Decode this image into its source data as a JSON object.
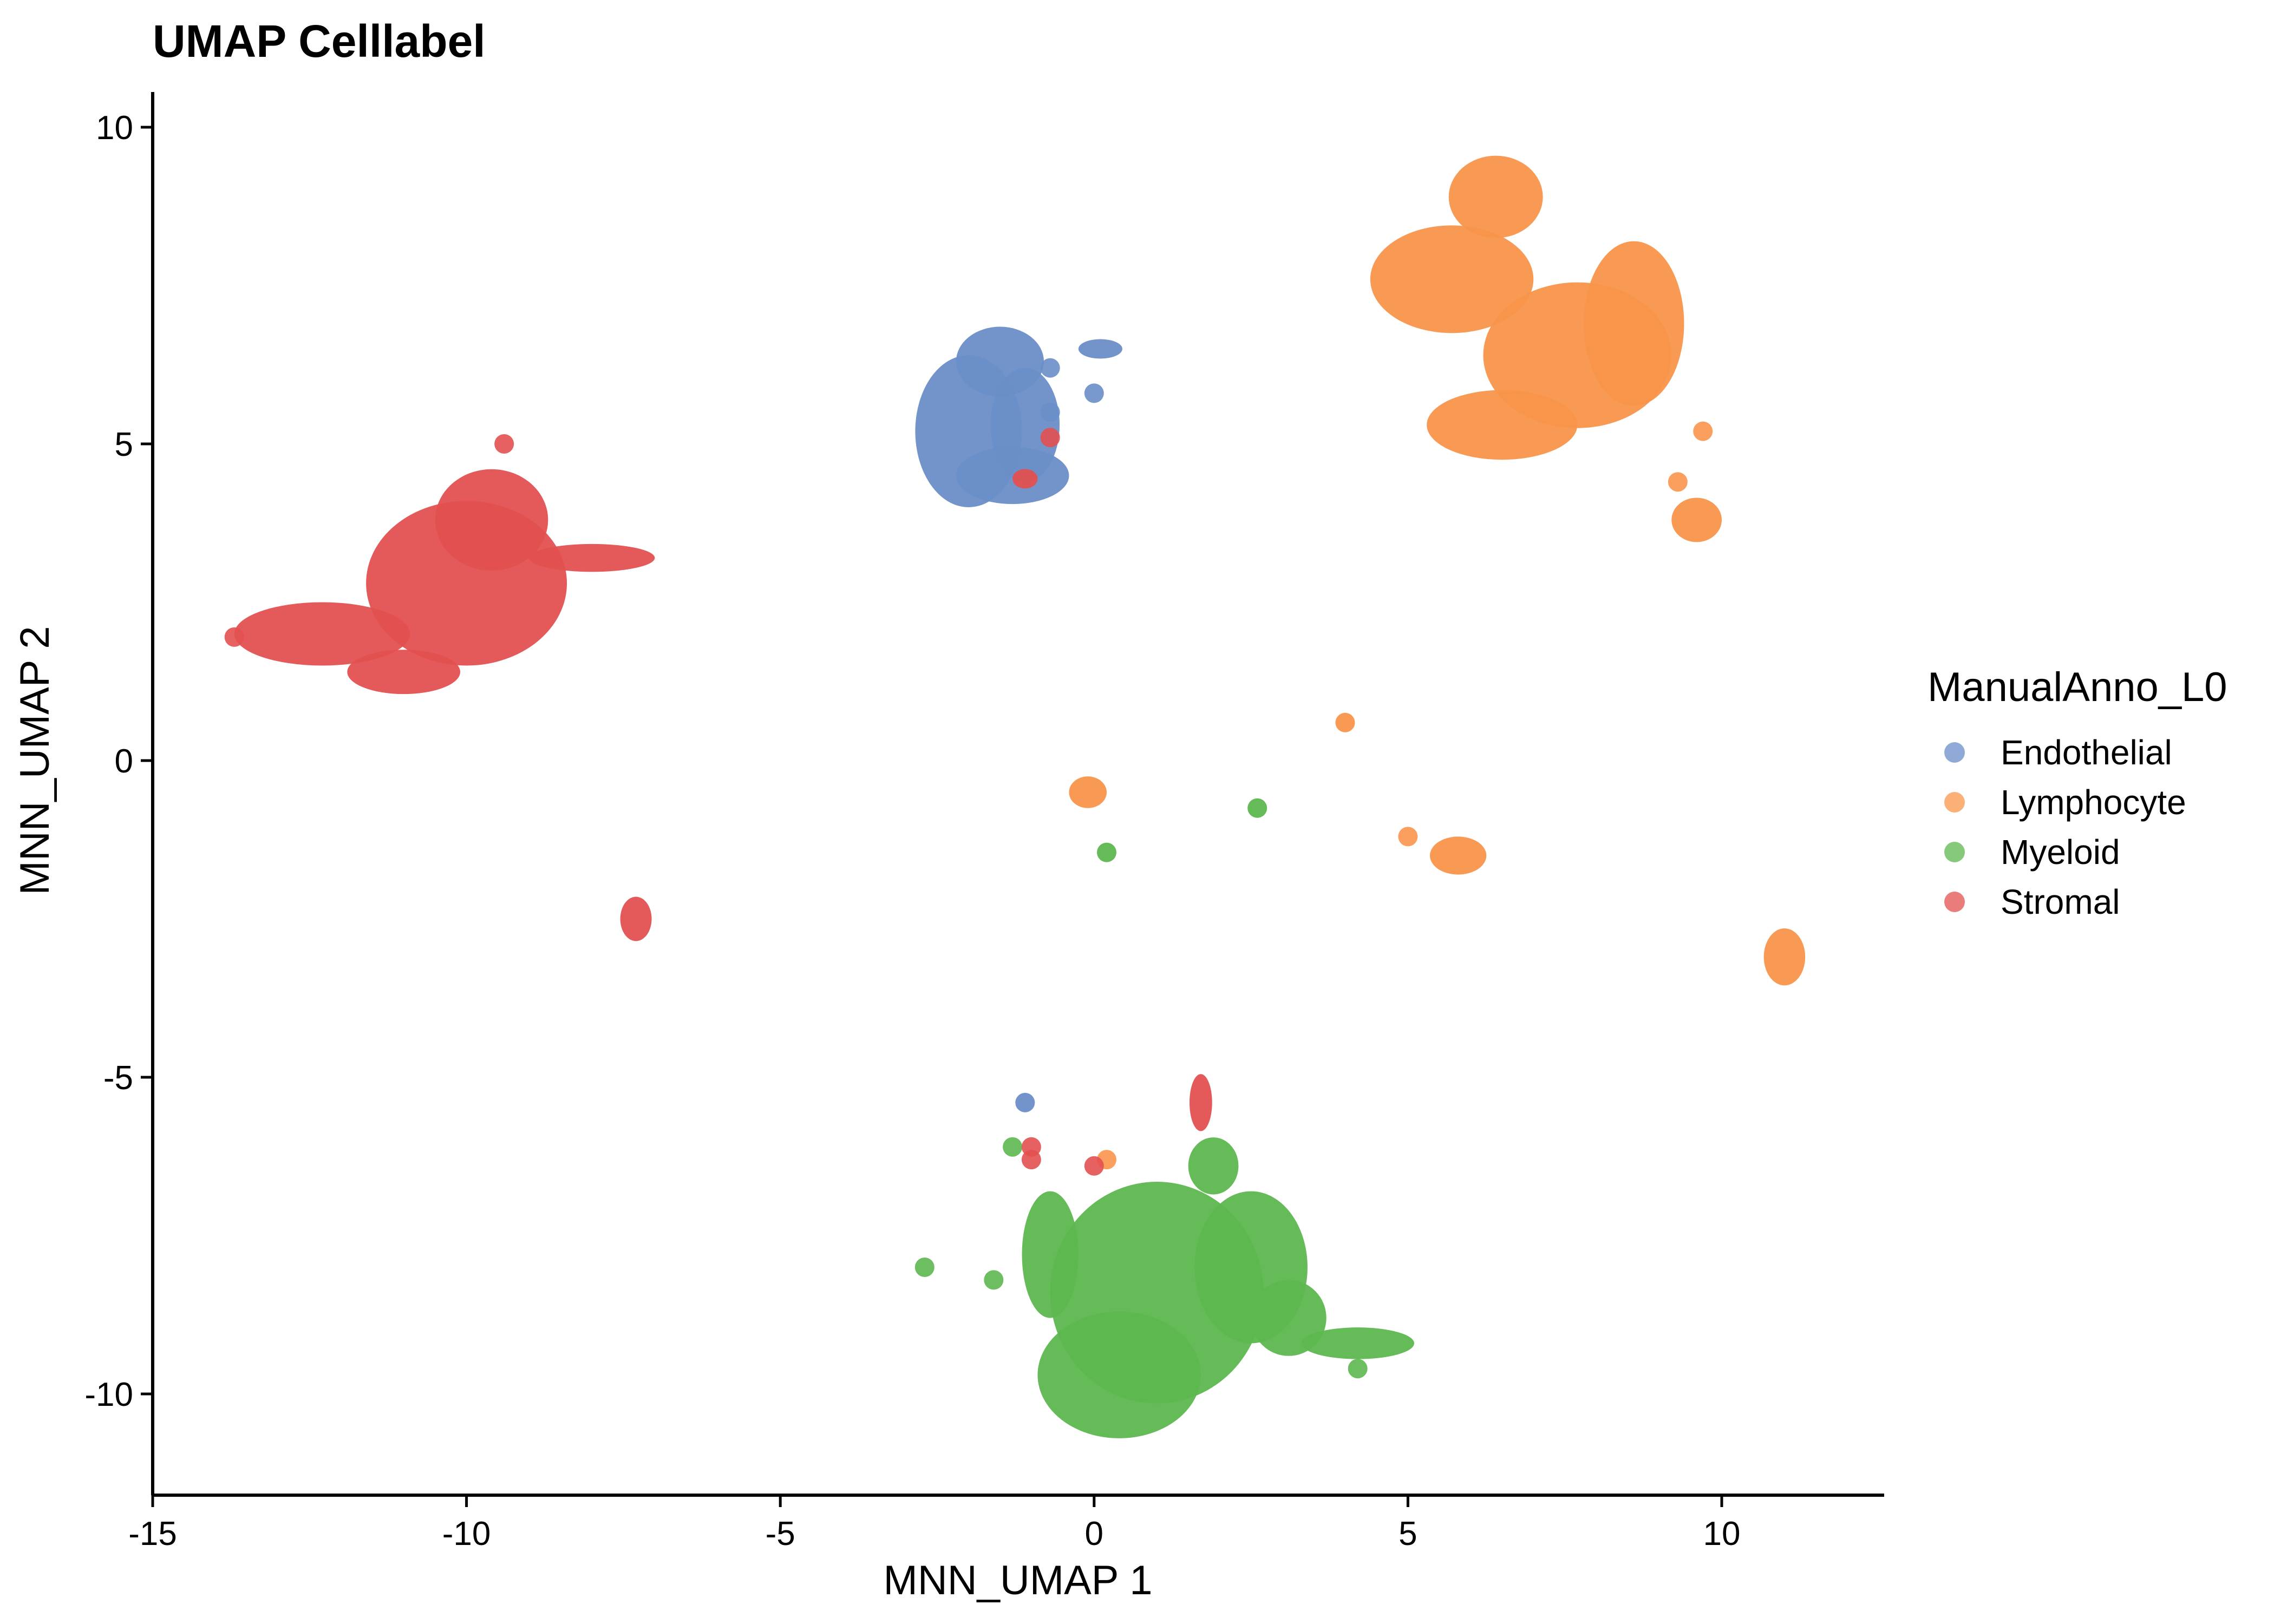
{
  "chart_data": {
    "type": "scatter",
    "title": "UMAP Celllabel",
    "xlabel": "MNN_UMAP 1",
    "ylabel": "MNN_UMAP 2",
    "xlim": [
      -15,
      12.5
    ],
    "ylim": [
      -11.7,
      10.5
    ],
    "xticks": [
      -15,
      -10,
      -5,
      0,
      5,
      10
    ],
    "xtick_labels": [
      "-15",
      "-10",
      "-5",
      "0",
      "5",
      "10"
    ],
    "yticks": [
      -10,
      -5,
      0,
      5,
      10
    ],
    "ytick_labels": [
      "-10",
      "-5",
      "0",
      "5",
      "10"
    ],
    "grid": false,
    "legend": {
      "title": "ManualAnno_L0",
      "placement": "right",
      "entries": [
        {
          "name": "Endothelial",
          "color": "#6a8ec8"
        },
        {
          "name": "Lymphocyte",
          "color": "#f9954b"
        },
        {
          "name": "Myeloid",
          "color": "#5db74f"
        },
        {
          "name": "Stromal",
          "color": "#e35050"
        }
      ]
    },
    "series": [
      {
        "name": "Endothelial",
        "color": "#6a8ec8",
        "clusters": [
          {
            "x": -2.0,
            "y": 5.2
          },
          {
            "x": -1.5,
            "y": 6.3
          },
          {
            "x": -1.3,
            "y": 4.5
          },
          {
            "x": -1.1,
            "y": 5.3
          },
          {
            "x": 0.1,
            "y": 6.5
          },
          {
            "x": -1.1,
            "y": -5.4
          }
        ],
        "points": [
          {
            "x": 0.0,
            "y": 5.8
          },
          {
            "x": -0.7,
            "y": 5.5
          },
          {
            "x": -0.7,
            "y": 6.2
          }
        ]
      },
      {
        "name": "Lymphocyte",
        "color": "#f9954b",
        "clusters": [
          {
            "x": 5.7,
            "y": 7.6
          },
          {
            "x": 6.4,
            "y": 8.9
          },
          {
            "x": 7.7,
            "y": 6.4
          },
          {
            "x": 8.6,
            "y": 6.9
          },
          {
            "x": 6.5,
            "y": 5.3
          },
          {
            "x": 9.6,
            "y": 3.8
          },
          {
            "x": -0.1,
            "y": -0.5
          },
          {
            "x": 4.0,
            "y": 0.6
          },
          {
            "x": 5.8,
            "y": -1.5
          },
          {
            "x": 11.0,
            "y": -3.1
          }
        ],
        "points": [
          {
            "x": 9.7,
            "y": 5.2
          },
          {
            "x": 9.3,
            "y": 4.4
          },
          {
            "x": 5.0,
            "y": -1.2
          },
          {
            "x": 0.2,
            "y": -6.3
          }
        ]
      },
      {
        "name": "Myeloid",
        "color": "#5db74f",
        "clusters": [
          {
            "x": 1.0,
            "y": -8.4
          },
          {
            "x": 0.4,
            "y": -9.7
          },
          {
            "x": 2.5,
            "y": -8.0
          },
          {
            "x": -0.7,
            "y": -7.8
          },
          {
            "x": 3.1,
            "y": -8.8
          },
          {
            "x": 4.2,
            "y": -9.2
          },
          {
            "x": 1.9,
            "y": -6.4
          },
          {
            "x": 2.6,
            "y": -0.75
          },
          {
            "x": 0.2,
            "y": -1.45
          }
        ],
        "points": [
          {
            "x": -2.7,
            "y": -8.0
          },
          {
            "x": -1.3,
            "y": -6.1
          },
          {
            "x": -1.6,
            "y": -8.2
          },
          {
            "x": 4.2,
            "y": -9.6
          }
        ]
      },
      {
        "name": "Stromal",
        "color": "#e35050",
        "clusters": [
          {
            "x": -10.0,
            "y": 2.8
          },
          {
            "x": -9.6,
            "y": 3.8
          },
          {
            "x": -12.3,
            "y": 2.0
          },
          {
            "x": -8.0,
            "y": 3.2
          },
          {
            "x": -11.0,
            "y": 1.4
          },
          {
            "x": -7.3,
            "y": -2.5
          },
          {
            "x": 1.7,
            "y": -5.4
          },
          {
            "x": -1.1,
            "y": 4.45
          }
        ],
        "points": [
          {
            "x": -13.7,
            "y": 1.95
          },
          {
            "x": -9.4,
            "y": 5.0
          },
          {
            "x": -1.0,
            "y": -6.1
          },
          {
            "x": -1.0,
            "y": -6.3
          },
          {
            "x": -0.7,
            "y": 5.1
          },
          {
            "x": 0.0,
            "y": -6.4
          }
        ]
      }
    ]
  }
}
